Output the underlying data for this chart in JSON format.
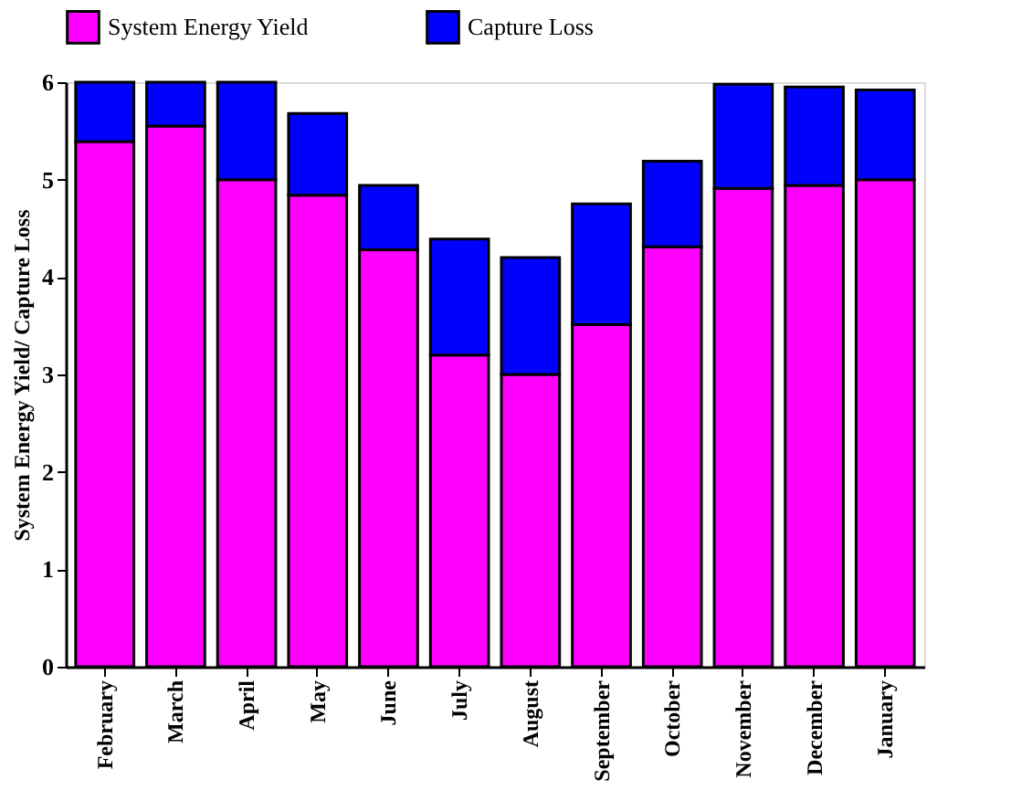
{
  "chart_data": {
    "type": "bar",
    "stacked": true,
    "ylabel": "System Energy Yield/ Capture Loss",
    "categories": [
      "February",
      "March",
      "April",
      "May",
      "June",
      "July",
      "August",
      "September",
      "October",
      "November",
      "December",
      "January"
    ],
    "series": [
      {
        "name": "System Energy Yield",
        "color": "#ff00ff",
        "values": [
          5.39,
          5.55,
          5.0,
          4.84,
          4.28,
          3.2,
          3.0,
          3.51,
          4.31,
          4.91,
          4.94,
          5.0
        ]
      },
      {
        "name": "Capture Loss",
        "color": "#0000ff",
        "values": [
          0.61,
          0.45,
          1.0,
          0.84,
          0.66,
          1.19,
          1.2,
          1.24,
          0.88,
          1.07,
          1.01,
          0.92
        ]
      }
    ],
    "ylim": [
      0,
      6
    ],
    "yticks": [
      0,
      1,
      2,
      3,
      4,
      5,
      6
    ],
    "grid": false,
    "legend": "top"
  }
}
